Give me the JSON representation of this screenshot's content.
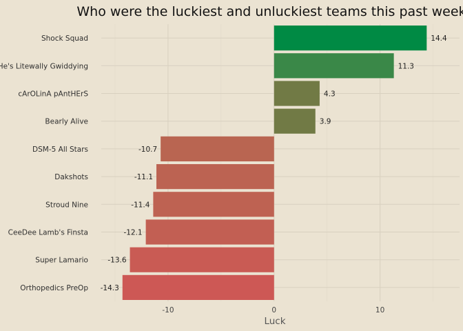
{
  "chart_data": {
    "type": "bar",
    "orientation": "horizontal",
    "title": "Who were the luckiest and unluckiest teams this past week?",
    "xlabel": "Luck",
    "ylabel": "",
    "xlim": [
      -16.3,
      17.5
    ],
    "x_ticks": [
      -10,
      0,
      10
    ],
    "x_tick_labels": [
      "-10",
      "0",
      "10"
    ],
    "grid": true,
    "legend": "none",
    "categories": [
      "Shock Squad",
      "He's Litewally Gwiddying",
      "cArOLinA pAntHErS",
      "Bearly Alive",
      "DSM-5 All Stars",
      "Dakshots",
      "Stroud Nine",
      "CeeDee Lamb's Finsta",
      "Super Lamario",
      "Orthopedics PreOp"
    ],
    "values": [
      14.4,
      11.3,
      4.3,
      3.9,
      -10.7,
      -11.1,
      -11.4,
      -12.1,
      -13.6,
      -14.3
    ],
    "value_labels": [
      "14.4",
      "11.3",
      "4.3",
      "3.9",
      "-10.7",
      "-11.1",
      "-11.4",
      "-12.1",
      "-13.6",
      "-14.3"
    ],
    "colors": [
      "#008a44",
      "#3a8848",
      "#717a45",
      "#717a45",
      "#b96551",
      "#bc6352",
      "#be6252",
      "#c25f53",
      "#c95b54",
      "#cd5855"
    ]
  }
}
